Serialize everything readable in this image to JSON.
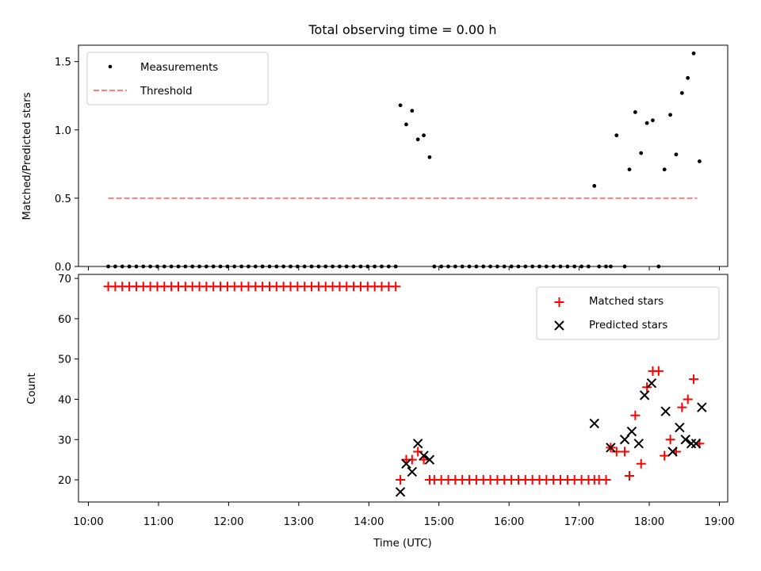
{
  "chart_data": [
    {
      "type": "scatter",
      "title": "Total observing time = 0.00 h",
      "ylabel": "Matched/Predicted stars",
      "xlabel": "",
      "ylim": [
        0,
        1.62
      ],
      "yticks": [
        "0.0",
        "0.5",
        "1.0",
        "1.5"
      ],
      "legend": {
        "placement": "top-left",
        "entries": [
          "Measurements",
          "Threshold"
        ]
      },
      "colors": {
        "measurements": "#000000",
        "threshold": "#ff7f7f"
      },
      "threshold": {
        "name": "Threshold",
        "y": 0.5,
        "x_range": [
          "10:17",
          "18:41"
        ]
      },
      "series": [
        {
          "name": "Measurements",
          "points": [
            [
              "10:17",
              0
            ],
            [
              "10:23",
              0
            ],
            [
              "10:29",
              0
            ],
            [
              "10:35",
              0
            ],
            [
              "10:41",
              0
            ],
            [
              "10:47",
              0
            ],
            [
              "10:53",
              0
            ],
            [
              "10:59",
              0
            ],
            [
              "11:05",
              0
            ],
            [
              "11:11",
              0
            ],
            [
              "11:17",
              0
            ],
            [
              "11:23",
              0
            ],
            [
              "11:29",
              0
            ],
            [
              "11:35",
              0
            ],
            [
              "11:41",
              0
            ],
            [
              "11:47",
              0
            ],
            [
              "11:53",
              0
            ],
            [
              "11:59",
              0
            ],
            [
              "12:05",
              0
            ],
            [
              "12:11",
              0
            ],
            [
              "12:17",
              0
            ],
            [
              "12:23",
              0
            ],
            [
              "12:29",
              0
            ],
            [
              "12:35",
              0
            ],
            [
              "12:41",
              0
            ],
            [
              "12:47",
              0
            ],
            [
              "12:53",
              0
            ],
            [
              "12:59",
              0
            ],
            [
              "13:05",
              0
            ],
            [
              "13:11",
              0
            ],
            [
              "13:17",
              0
            ],
            [
              "13:23",
              0
            ],
            [
              "13:29",
              0
            ],
            [
              "13:35",
              0
            ],
            [
              "13:41",
              0
            ],
            [
              "13:47",
              0
            ],
            [
              "13:53",
              0
            ],
            [
              "13:59",
              0
            ],
            [
              "14:05",
              0
            ],
            [
              "14:11",
              0
            ],
            [
              "14:17",
              0
            ],
            [
              "14:23",
              0
            ],
            [
              "14:27",
              1.18
            ],
            [
              "14:32",
              1.04
            ],
            [
              "14:37",
              1.14
            ],
            [
              "14:42",
              0.93
            ],
            [
              "14:47",
              0.96
            ],
            [
              "14:52",
              0.8
            ],
            [
              "14:56",
              0
            ],
            [
              "15:02",
              0
            ],
            [
              "15:08",
              0
            ],
            [
              "15:14",
              0
            ],
            [
              "15:20",
              0
            ],
            [
              "15:26",
              0
            ],
            [
              "15:32",
              0
            ],
            [
              "15:38",
              0
            ],
            [
              "15:44",
              0
            ],
            [
              "15:50",
              0
            ],
            [
              "15:56",
              0
            ],
            [
              "16:02",
              0
            ],
            [
              "16:08",
              0
            ],
            [
              "16:14",
              0
            ],
            [
              "16:20",
              0
            ],
            [
              "16:26",
              0
            ],
            [
              "16:32",
              0
            ],
            [
              "16:38",
              0
            ],
            [
              "16:44",
              0
            ],
            [
              "16:50",
              0
            ],
            [
              "16:56",
              0
            ],
            [
              "17:02",
              0
            ],
            [
              "17:08",
              0
            ],
            [
              "17:13",
              0.59
            ],
            [
              "17:17",
              0
            ],
            [
              "17:23",
              0
            ],
            [
              "17:27",
              0
            ],
            [
              "17:32",
              0.96
            ],
            [
              "17:39",
              0
            ],
            [
              "17:43",
              0.71
            ],
            [
              "17:48",
              1.13
            ],
            [
              "17:53",
              0.83
            ],
            [
              "17:58",
              1.05
            ],
            [
              "18:03",
              1.07
            ],
            [
              "18:08",
              0
            ],
            [
              "18:13",
              0.71
            ],
            [
              "18:18",
              1.11
            ],
            [
              "18:23",
              0.82
            ],
            [
              "18:28",
              1.27
            ],
            [
              "18:33",
              1.38
            ],
            [
              "18:38",
              1.56
            ],
            [
              "18:43",
              0.77
            ]
          ]
        }
      ]
    },
    {
      "type": "scatter",
      "title": "",
      "ylabel": "Count",
      "xlabel": "Time (UTC)",
      "ylim": [
        14.5,
        71
      ],
      "yticks": [
        "20",
        "30",
        "40",
        "50",
        "60",
        "70"
      ],
      "xticks": [
        "10:00",
        "11:00",
        "12:00",
        "13:00",
        "14:00",
        "15:00",
        "16:00",
        "17:00",
        "18:00",
        "19:00"
      ],
      "legend": {
        "placement": "top-right",
        "entries": [
          "Matched stars",
          "Predicted stars"
        ]
      },
      "colors": {
        "matched": "#ff0000",
        "predicted": "#000000"
      },
      "series": [
        {
          "name": "Matched stars",
          "marker": "+",
          "points": [
            [
              "10:17",
              68
            ],
            [
              "10:23",
              68
            ],
            [
              "10:29",
              68
            ],
            [
              "10:35",
              68
            ],
            [
              "10:41",
              68
            ],
            [
              "10:47",
              68
            ],
            [
              "10:53",
              68
            ],
            [
              "10:59",
              68
            ],
            [
              "11:05",
              68
            ],
            [
              "11:11",
              68
            ],
            [
              "11:17",
              68
            ],
            [
              "11:23",
              68
            ],
            [
              "11:29",
              68
            ],
            [
              "11:35",
              68
            ],
            [
              "11:41",
              68
            ],
            [
              "11:47",
              68
            ],
            [
              "11:53",
              68
            ],
            [
              "11:59",
              68
            ],
            [
              "12:05",
              68
            ],
            [
              "12:11",
              68
            ],
            [
              "12:17",
              68
            ],
            [
              "12:23",
              68
            ],
            [
              "12:29",
              68
            ],
            [
              "12:35",
              68
            ],
            [
              "12:41",
              68
            ],
            [
              "12:47",
              68
            ],
            [
              "12:53",
              68
            ],
            [
              "12:59",
              68
            ],
            [
              "13:05",
              68
            ],
            [
              "13:11",
              68
            ],
            [
              "13:17",
              68
            ],
            [
              "13:23",
              68
            ],
            [
              "13:29",
              68
            ],
            [
              "13:35",
              68
            ],
            [
              "13:41",
              68
            ],
            [
              "13:47",
              68
            ],
            [
              "13:53",
              68
            ],
            [
              "13:59",
              68
            ],
            [
              "14:05",
              68
            ],
            [
              "14:11",
              68
            ],
            [
              "14:17",
              68
            ],
            [
              "14:23",
              68
            ],
            [
              "14:27",
              20
            ],
            [
              "14:32",
              25
            ],
            [
              "14:37",
              25
            ],
            [
              "14:42",
              27
            ],
            [
              "14:47",
              25
            ],
            [
              "14:52",
              20
            ],
            [
              "14:56",
              20
            ],
            [
              "15:02",
              20
            ],
            [
              "15:08",
              20
            ],
            [
              "15:14",
              20
            ],
            [
              "15:20",
              20
            ],
            [
              "15:26",
              20
            ],
            [
              "15:32",
              20
            ],
            [
              "15:38",
              20
            ],
            [
              "15:44",
              20
            ],
            [
              "15:50",
              20
            ],
            [
              "15:56",
              20
            ],
            [
              "16:02",
              20
            ],
            [
              "16:08",
              20
            ],
            [
              "16:14",
              20
            ],
            [
              "16:20",
              20
            ],
            [
              "16:26",
              20
            ],
            [
              "16:32",
              20
            ],
            [
              "16:38",
              20
            ],
            [
              "16:44",
              20
            ],
            [
              "16:50",
              20
            ],
            [
              "16:56",
              20
            ],
            [
              "17:02",
              20
            ],
            [
              "17:08",
              20
            ],
            [
              "17:13",
              20
            ],
            [
              "17:17",
              20
            ],
            [
              "17:23",
              20
            ],
            [
              "17:27",
              28
            ],
            [
              "17:32",
              27
            ],
            [
              "17:39",
              27
            ],
            [
              "17:43",
              21
            ],
            [
              "17:48",
              36
            ],
            [
              "17:53",
              24
            ],
            [
              "17:58",
              43
            ],
            [
              "18:03",
              47
            ],
            [
              "18:08",
              47
            ],
            [
              "18:13",
              26
            ],
            [
              "18:18",
              30
            ],
            [
              "18:23",
              27
            ],
            [
              "18:28",
              38
            ],
            [
              "18:33",
              40
            ],
            [
              "18:38",
              45
            ],
            [
              "18:43",
              29
            ]
          ]
        },
        {
          "name": "Predicted stars",
          "marker": "x",
          "points": [
            [
              "14:27",
              17
            ],
            [
              "14:32",
              24
            ],
            [
              "14:37",
              22
            ],
            [
              "14:42",
              29
            ],
            [
              "14:47",
              26
            ],
            [
              "14:52",
              25
            ],
            [
              "17:13",
              34
            ],
            [
              "17:27",
              28
            ],
            [
              "17:39",
              30
            ],
            [
              "17:45",
              32
            ],
            [
              "17:51",
              29
            ],
            [
              "17:56",
              41
            ],
            [
              "18:02",
              44
            ],
            [
              "18:14",
              37
            ],
            [
              "18:20",
              27
            ],
            [
              "18:26",
              33
            ],
            [
              "18:31",
              30
            ],
            [
              "18:36",
              29
            ],
            [
              "18:40",
              29
            ],
            [
              "18:45",
              38
            ]
          ]
        }
      ]
    }
  ]
}
